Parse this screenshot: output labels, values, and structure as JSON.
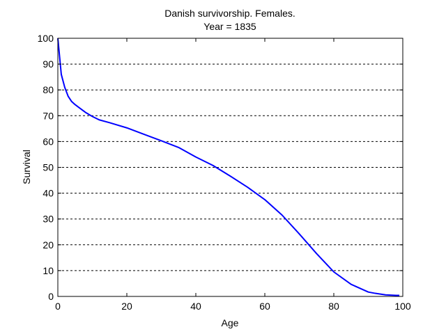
{
  "chart_data": {
    "type": "line",
    "title_line1": "Danish survivorship. Females.",
    "title_line2": "Year = 1835",
    "xlabel": "Age",
    "ylabel": "Survival",
    "xlim": [
      0,
      100
    ],
    "ylim": [
      0,
      100
    ],
    "x_ticks": [
      0,
      20,
      40,
      60,
      80,
      100
    ],
    "y_ticks": [
      0,
      10,
      20,
      30,
      40,
      50,
      60,
      70,
      80,
      90,
      100
    ],
    "x_tick_labels": [
      "0",
      "20",
      "40",
      "60",
      "80",
      "100"
    ],
    "y_tick_labels": [
      "0",
      "10",
      "20",
      "30",
      "40",
      "50",
      "60",
      "70",
      "80",
      "90",
      "100"
    ],
    "grid": "horizontal-dashed",
    "line_color": "#0000ff",
    "series": [
      {
        "x": [
          0,
          1,
          2,
          3,
          4,
          5,
          6,
          8,
          10,
          12,
          15,
          20,
          25,
          30,
          35,
          40,
          45,
          50,
          55,
          60,
          65,
          70,
          75,
          80,
          85,
          90,
          92,
          95,
          98,
          99
        ],
        "y": [
          100,
          86,
          81,
          77.5,
          75.5,
          74.3,
          73.3,
          71.3,
          69.7,
          68.4,
          67.3,
          65.3,
          62.8,
          60.3,
          57.7,
          54,
          50.7,
          46.6,
          42.3,
          37.5,
          31.5,
          24.2,
          16.6,
          9.5,
          4.7,
          1.7,
          1.2,
          0.6,
          0.4,
          0.4
        ]
      }
    ]
  }
}
